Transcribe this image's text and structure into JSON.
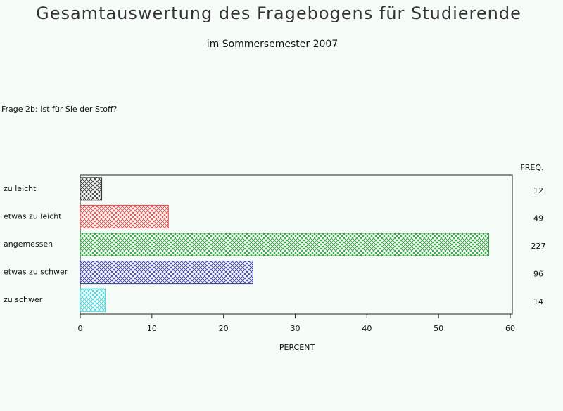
{
  "chart_data": {
    "type": "hbar",
    "title": "Gesamtauswertung des Fragebogens für Studierende",
    "subtitle": "im Sommersemester 2007",
    "question": "Frage 2b: Ist für Sie der Stoff?",
    "categories": [
      "zu leicht",
      "etwas zu leicht",
      "angemessen",
      "etwas zu schwer",
      "zu schwer"
    ],
    "values": [
      3.0,
      12.3,
      57.0,
      24.1,
      3.5
    ],
    "colors": [
      "#303030",
      "#e04848",
      "#2e9a3a",
      "#3a3aa0",
      "#40d0d8"
    ],
    "freq_label": "FREQ.",
    "freq": [
      12,
      49,
      227,
      96,
      14
    ],
    "xlabel": "PERCENT",
    "xlim": [
      0,
      60
    ],
    "xticks": [
      0,
      10,
      20,
      30,
      40,
      50,
      60
    ]
  }
}
